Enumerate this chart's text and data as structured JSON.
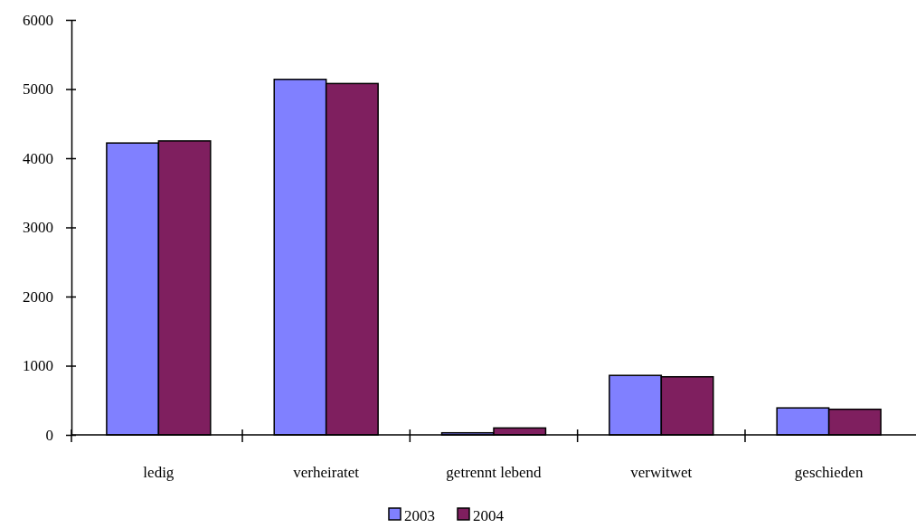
{
  "chart_data": {
    "type": "bar",
    "categories": [
      "ledig",
      "verheiratet",
      "getrennt lebend",
      "verwitwet",
      "geschieden"
    ],
    "series": [
      {
        "name": "2003",
        "color": "#8080ff",
        "values": [
          4220,
          5140,
          30,
          860,
          390
        ]
      },
      {
        "name": "2004",
        "color": "#7f1f5f",
        "values": [
          4250,
          5080,
          100,
          840,
          370
        ]
      }
    ],
    "ylim": [
      0,
      6000
    ],
    "yticks": [
      0,
      1000,
      2000,
      3000,
      4000,
      5000,
      6000
    ],
    "grid": false,
    "legend": "bottom"
  }
}
